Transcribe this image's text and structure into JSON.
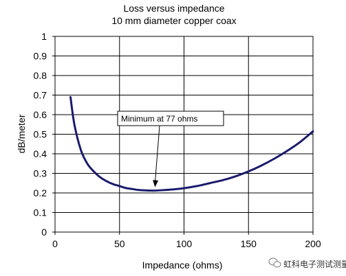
{
  "chart_data": {
    "type": "line",
    "title": "Loss versus impedance",
    "subtitle": "10 mm diameter copper coax",
    "xlabel": "Impedance (ohms)",
    "ylabel": "dB/meter",
    "xlim": [
      0,
      200
    ],
    "ylim": [
      0,
      1
    ],
    "x_ticks": [
      "0",
      "50",
      "100",
      "150",
      "200"
    ],
    "y_ticks": [
      "0",
      "0.1",
      "0.2",
      "0.3",
      "0.4",
      "0.5",
      "0.6",
      "0.7",
      "0.8",
      "0.9",
      "1"
    ],
    "grid": true,
    "legend": "none",
    "series": [
      {
        "color": "#1a1a6e",
        "x": [
          12,
          15,
          20,
          25,
          30,
          35,
          40,
          45,
          50,
          55,
          60,
          65,
          70,
          77,
          85,
          95,
          100,
          110,
          120,
          130,
          140,
          150,
          160,
          170,
          180,
          190,
          200
        ],
        "y": [
          0.69,
          0.55,
          0.42,
          0.35,
          0.31,
          0.28,
          0.26,
          0.245,
          0.235,
          0.225,
          0.22,
          0.215,
          0.213,
          0.212,
          0.215,
          0.22,
          0.224,
          0.235,
          0.25,
          0.265,
          0.285,
          0.31,
          0.34,
          0.375,
          0.415,
          0.46,
          0.515
        ]
      }
    ],
    "annotations": [
      {
        "text": "Minimum at 77 ohms",
        "x": 77,
        "y": 0.212
      }
    ]
  },
  "watermark": {
    "text": "虹科电子测试测量",
    "icon": "wechat-icon"
  }
}
